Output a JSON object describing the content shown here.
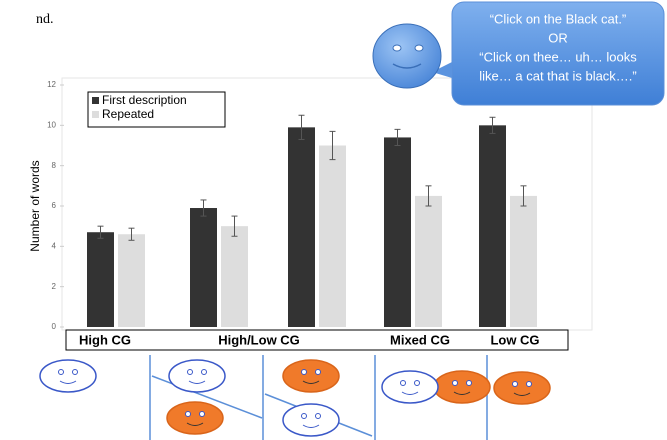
{
  "chart_data": {
    "type": "bar",
    "ylabel": "Number of words",
    "categories": [
      "High CG",
      "High/Low CG",
      null,
      "Mixed CG",
      "Low CG"
    ],
    "series": [
      {
        "name": "First description",
        "color": "#333333",
        "values": [
          4.7,
          5.9,
          9.9,
          9.4,
          10.0
        ],
        "errors": [
          0.3,
          0.4,
          0.6,
          0.4,
          0.4
        ]
      },
      {
        "name": "Repeated",
        "color": "#dddddd",
        "values": [
          4.6,
          5.0,
          9.0,
          6.5,
          6.5
        ],
        "errors": [
          0.3,
          0.5,
          0.7,
          0.5,
          0.5
        ]
      }
    ],
    "ylim": [
      0,
      12
    ],
    "yticks": [
      0,
      2,
      4,
      6,
      8,
      10,
      12
    ],
    "grid": false,
    "annotations": [
      "“Click on the Black cat.”",
      "OR",
      "“Click on thee… uh… looks",
      "like… a cat that is black….”"
    ]
  },
  "fragments": [
    "nd."
  ]
}
